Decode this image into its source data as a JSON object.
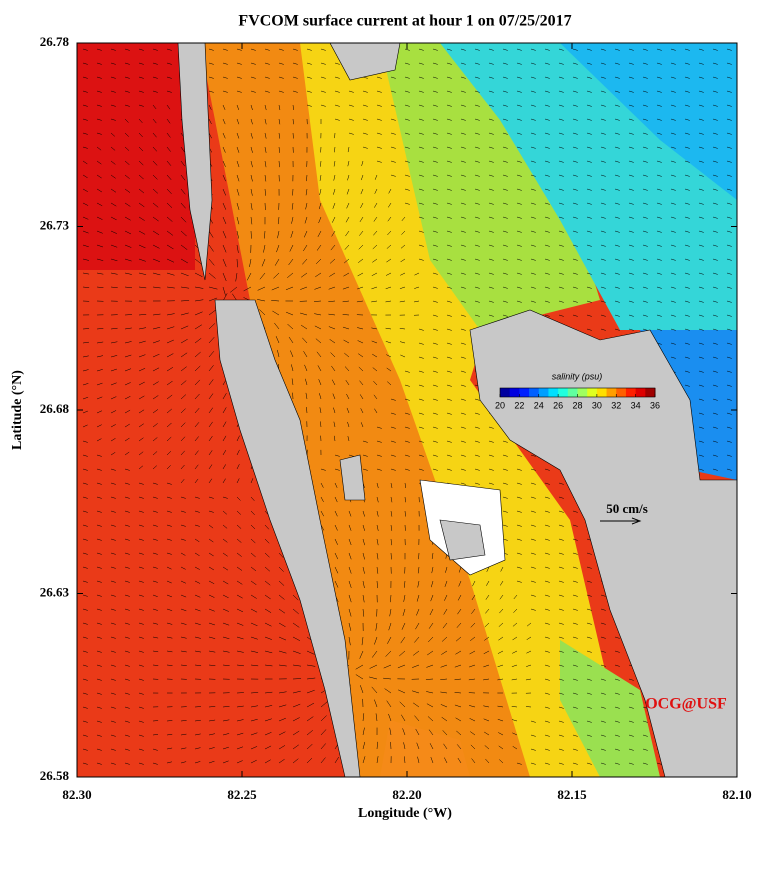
{
  "chart_data": {
    "type": "map",
    "title": "FVCOM surface current at hour 1 on 07/25/2017",
    "x_label": "Longitude (°W)",
    "y_label": "Latitude (°N)",
    "xlim": [
      82.3,
      82.1
    ],
    "xticks": [
      {
        "value": 82.3,
        "label": "82.30"
      },
      82.25,
      {
        "value": 82.2,
        "label": "82.20"
      },
      82.15,
      {
        "value": 82.1,
        "label": "82.10"
      }
    ],
    "ylim": [
      26.58,
      26.78
    ],
    "yticks": [
      26.58,
      26.63,
      26.68,
      26.73,
      26.78
    ],
    "colorbar": {
      "label": "salinity (psu)",
      "lim": [
        20,
        36
      ],
      "ticks": [
        20,
        22,
        24,
        26,
        28,
        30,
        32,
        34,
        36
      ]
    },
    "scale_label": "50 cm/s",
    "credit": "OCG@USF"
  }
}
